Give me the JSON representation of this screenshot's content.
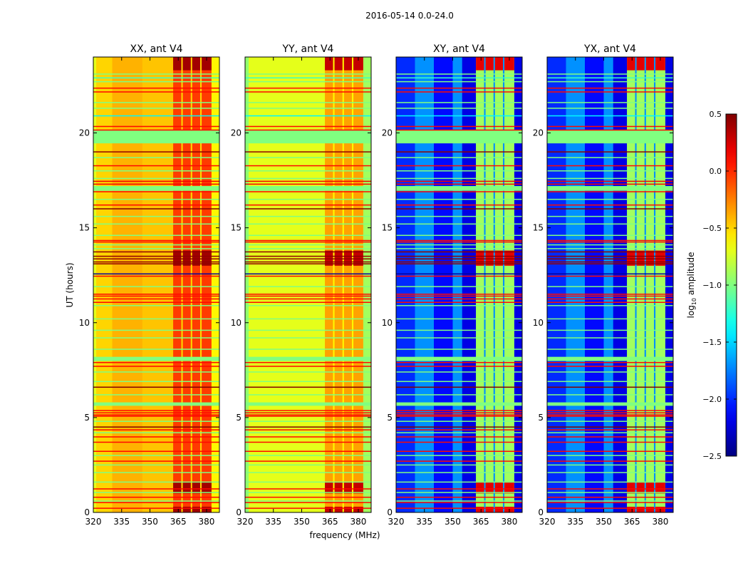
{
  "chart_data": {
    "type": "heatmap",
    "title": "2016-05-14 0.0-24.0",
    "xlabel": "frequency (MHz)",
    "ylabel": "UT (hours)",
    "xlim": [
      320,
      386.8
    ],
    "ylim": [
      0,
      24
    ],
    "xticks": [
      320,
      335,
      350,
      365,
      380
    ],
    "yticks": [
      0,
      5,
      10,
      15,
      20
    ],
    "colorbar": {
      "label_prefix": "log",
      "label_sub": "10",
      "label_suffix": " amplitude",
      "colormap": "jet",
      "range": [
        -2.5,
        0.5
      ],
      "ticks": [
        "0.5",
        "0.0",
        "−0.5",
        "−1.0",
        "−1.5",
        "−2.0",
        "−2.5"
      ],
      "tick_values": [
        0.5,
        0.0,
        -0.5,
        -1.0,
        -1.5,
        -2.0,
        -2.5
      ]
    },
    "high_band_columns": [
      [
        362.3,
        366.6
      ],
      [
        367.4,
        371.6
      ],
      [
        372.4,
        376.6
      ],
      [
        377.4,
        382.6
      ]
    ],
    "panels": [
      {
        "title": "XX, ant V4",
        "bands": [
          [
            320,
            321.5,
            -0.7
          ],
          [
            321.5,
            330,
            -0.5
          ],
          [
            330,
            346,
            -0.4
          ],
          [
            346,
            362.3,
            -0.45
          ],
          [
            382.6,
            386.8,
            -0.6
          ]
        ],
        "column_value": -0.05,
        "gap_value": -0.5,
        "burst_value": 0.4
      },
      {
        "title": "YY, ant V4",
        "bands": [
          [
            320,
            322,
            -0.95
          ],
          [
            322,
            362.3,
            -0.7
          ],
          [
            382.6,
            386.8,
            -0.9
          ]
        ],
        "column_value": -0.35,
        "gap_value": -0.6,
        "burst_value": 0.3
      },
      {
        "title": "XY, ant V4",
        "bands": [
          [
            320,
            330,
            -2.0
          ],
          [
            330,
            340,
            -1.7
          ],
          [
            340,
            350,
            -2.1
          ],
          [
            350,
            355,
            -1.7
          ],
          [
            355,
            362.3,
            -2.2
          ],
          [
            382.6,
            386.8,
            -2.2
          ]
        ],
        "column_value": -0.9,
        "gap_value": -1.7,
        "burst_value": 0.2
      },
      {
        "title": "YX, ant V4",
        "bands": [
          [
            320,
            330,
            -2.0
          ],
          [
            330,
            340,
            -1.7
          ],
          [
            340,
            350,
            -2.1
          ],
          [
            350,
            355,
            -1.7
          ],
          [
            355,
            362.3,
            -2.2
          ],
          [
            382.6,
            386.8,
            -2.2
          ]
        ],
        "column_value": -0.9,
        "gap_value": -1.7,
        "burst_value": 0.2
      }
    ],
    "bursts_hours": [
      [
        23.3,
        24.0
      ],
      [
        13.0,
        13.8
      ],
      [
        1.0,
        1.6
      ],
      [
        0.0,
        0.3
      ]
    ],
    "flagged_blocks": [
      [
        19.45,
        20.15,
        -1.0
      ],
      [
        16.95,
        17.2,
        -1.0
      ],
      [
        7.98,
        8.2,
        -1.0
      ],
      [
        5.62,
        5.8,
        -1.0
      ]
    ],
    "time_lines": [
      [
        22.9,
        -1.2
      ],
      [
        22.7,
        -1.0
      ],
      [
        22.36,
        0.1
      ],
      [
        22.16,
        0.1
      ],
      [
        21.6,
        -1.0
      ],
      [
        20.9,
        -1.4
      ],
      [
        20.34,
        0.1
      ],
      [
        20.15,
        0.1
      ],
      [
        19.0,
        0.45
      ],
      [
        18.27,
        0.1
      ],
      [
        17.45,
        0.15
      ],
      [
        17.3,
        0.15
      ],
      [
        16.9,
        0.1
      ],
      [
        16.2,
        0.1
      ],
      [
        16.0,
        0.5
      ],
      [
        14.33,
        0.1
      ],
      [
        14.25,
        0.1
      ],
      [
        14.1,
        -1.0
      ],
      [
        13.73,
        0.45
      ],
      [
        13.5,
        0.45
      ],
      [
        13.36,
        0.45
      ],
      [
        13.2,
        0.45
      ],
      [
        13.1,
        0.45
      ],
      [
        12.57,
        -2.4
      ],
      [
        12.45,
        0.1
      ],
      [
        11.5,
        0.1
      ],
      [
        11.4,
        0.1
      ],
      [
        11.25,
        0.1
      ],
      [
        11.07,
        0.1
      ],
      [
        7.9,
        0.1
      ],
      [
        7.7,
        0.1
      ],
      [
        6.6,
        0.5
      ],
      [
        5.37,
        0.1
      ],
      [
        5.25,
        0.1
      ],
      [
        5.14,
        0.1
      ],
      [
        5.07,
        0.1
      ],
      [
        4.5,
        0.5
      ],
      [
        4.35,
        0.1
      ],
      [
        3.98,
        0.1
      ],
      [
        3.7,
        0.1
      ],
      [
        3.22,
        0.1
      ],
      [
        2.7,
        0.1
      ],
      [
        1.24,
        0.1
      ],
      [
        0.8,
        0.1
      ],
      [
        0.52,
        0.1
      ],
      [
        0.22,
        0.1
      ],
      [
        0.6,
        -1.0
      ],
      [
        1.05,
        -1.0
      ],
      [
        1.6,
        -1.0
      ],
      [
        2.1,
        -1.0
      ],
      [
        2.5,
        -1.0
      ],
      [
        3.0,
        -1.0
      ],
      [
        4.2,
        -1.0
      ],
      [
        4.8,
        -1.0
      ],
      [
        6.2,
        -1.0
      ],
      [
        6.9,
        -1.0
      ],
      [
        7.4,
        -1.0
      ],
      [
        8.6,
        -1.0
      ],
      [
        9.2,
        -1.0
      ],
      [
        9.6,
        -1.0
      ],
      [
        10.2,
        -1.0
      ],
      [
        10.9,
        -1.0
      ],
      [
        11.9,
        -1.0
      ],
      [
        13.9,
        -1.0
      ],
      [
        14.6,
        -1.0
      ],
      [
        15.2,
        -1.0
      ],
      [
        15.6,
        -1.0
      ],
      [
        16.5,
        -1.0
      ],
      [
        17.6,
        -1.0
      ],
      [
        18.0,
        -1.0
      ],
      [
        18.7,
        -1.0
      ],
      [
        21.3,
        -1.0
      ],
      [
        23.1,
        -1.0
      ]
    ]
  }
}
